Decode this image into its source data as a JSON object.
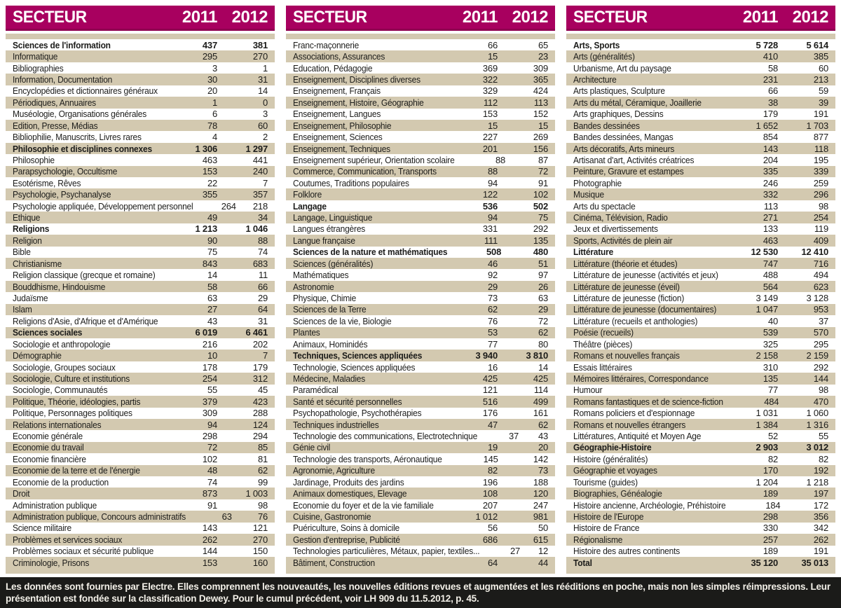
{
  "colors": {
    "header_bg": "#a8005f",
    "header_edge": "#8f0150",
    "row_alt_bg": "#d3c9b0",
    "footer_bg": "#1b1b19",
    "footer_text": "#f3f0e8",
    "body_text": "#1c1c1a"
  },
  "table_header": {
    "sector": "SECTEUR",
    "y2011": "2011",
    "y2012": "2012"
  },
  "tables": [
    {
      "rows": [
        {
          "label": "Sciences de l'information",
          "y2011": "437",
          "y2012": "381",
          "bold": true
        },
        {
          "label": "Informatique",
          "y2011": "295",
          "y2012": "270"
        },
        {
          "label": "Bibliographies",
          "y2011": "3",
          "y2012": "1"
        },
        {
          "label": "Information, Documentation",
          "y2011": "30",
          "y2012": "31"
        },
        {
          "label": "Encyclopédies et dictionnaires généraux",
          "y2011": "20",
          "y2012": "14"
        },
        {
          "label": "Périodiques, Annuaires",
          "y2011": "1",
          "y2012": "0"
        },
        {
          "label": "Muséologie, Organisations générales",
          "y2011": "6",
          "y2012": "3"
        },
        {
          "label": "Edition, Presse, Médias",
          "y2011": "78",
          "y2012": "60"
        },
        {
          "label": "Bibliophilie, Manuscrits, Livres rares",
          "y2011": "4",
          "y2012": "2"
        },
        {
          "label": "Philosophie et disciplines connexes",
          "y2011": "1 306",
          "y2012": "1 297",
          "bold": true
        },
        {
          "label": "Philosophie",
          "y2011": "463",
          "y2012": "441"
        },
        {
          "label": "Parapsychologie, Occultisme",
          "y2011": "153",
          "y2012": "240"
        },
        {
          "label": "Esotérisme, Rêves",
          "y2011": "22",
          "y2012": "7"
        },
        {
          "label": "Psychologie, Psychanalyse",
          "y2011": "355",
          "y2012": "357"
        },
        {
          "label": "Psychologie appliquée, Développement personnel",
          "y2011": "264",
          "y2012": "218"
        },
        {
          "label": "Ethique",
          "y2011": "49",
          "y2012": "34"
        },
        {
          "label": "Religions",
          "y2011": "1 213",
          "y2012": "1 046",
          "bold": true
        },
        {
          "label": "Religion",
          "y2011": "90",
          "y2012": "88"
        },
        {
          "label": "Bible",
          "y2011": "75",
          "y2012": "74"
        },
        {
          "label": "Christianisme",
          "y2011": "843",
          "y2012": "683"
        },
        {
          "label": "Religion classique (grecque et romaine)",
          "y2011": "14",
          "y2012": "11"
        },
        {
          "label": "Bouddhisme, Hindouisme",
          "y2011": "58",
          "y2012": "66"
        },
        {
          "label": "Judaïsme",
          "y2011": "63",
          "y2012": "29"
        },
        {
          "label": "Islam",
          "y2011": "27",
          "y2012": "64"
        },
        {
          "label": "Religions d'Asie, d'Afrique et d'Amérique",
          "y2011": "43",
          "y2012": "31"
        },
        {
          "label": "Sciences sociales",
          "y2011": "6 019",
          "y2012": "6 461",
          "bold": true
        },
        {
          "label": "Sociologie et anthropologie",
          "y2011": "216",
          "y2012": "202"
        },
        {
          "label": "Démographie",
          "y2011": "10",
          "y2012": "7"
        },
        {
          "label": "Sociologie, Groupes sociaux",
          "y2011": "178",
          "y2012": "179"
        },
        {
          "label": "Sociologie, Culture et institutions",
          "y2011": "254",
          "y2012": "312"
        },
        {
          "label": "Sociologie, Communautés",
          "y2011": "55",
          "y2012": "45"
        },
        {
          "label": "Politique, Théorie, idéologies, partis",
          "y2011": "379",
          "y2012": "423"
        },
        {
          "label": "Politique, Personnages politiques",
          "y2011": "309",
          "y2012": "288"
        },
        {
          "label": "Relations internationales",
          "y2011": "94",
          "y2012": "124"
        },
        {
          "label": "Economie générale",
          "y2011": "298",
          "y2012": "294"
        },
        {
          "label": "Economie du travail",
          "y2011": "72",
          "y2012": "85"
        },
        {
          "label": "Economie financière",
          "y2011": "102",
          "y2012": "81"
        },
        {
          "label": "Economie de la terre et de l'énergie",
          "y2011": "48",
          "y2012": "62"
        },
        {
          "label": "Economie de la production",
          "y2011": "74",
          "y2012": "99"
        },
        {
          "label": "Droit",
          "y2011": "873",
          "y2012": "1 003"
        },
        {
          "label": "Administration publique",
          "y2011": "91",
          "y2012": "98"
        },
        {
          "label": "Administration publique, Concours administratifs",
          "y2011": "63",
          "y2012": "76"
        },
        {
          "label": "Science militaire",
          "y2011": "143",
          "y2012": "121"
        },
        {
          "label": "Problèmes et services sociaux",
          "y2011": "262",
          "y2012": "270"
        },
        {
          "label": "Problèmes sociaux et sécurité publique",
          "y2011": "144",
          "y2012": "150"
        },
        {
          "label": "Criminologie, Prisons",
          "y2011": "153",
          "y2012": "160"
        }
      ]
    },
    {
      "rows": [
        {
          "label": "Franc-maçonnerie",
          "y2011": "66",
          "y2012": "65"
        },
        {
          "label": "Associations, Assurances",
          "y2011": "15",
          "y2012": "23"
        },
        {
          "label": "Education, Pédagogie",
          "y2011": "369",
          "y2012": "309"
        },
        {
          "label": "Enseignement, Disciplines diverses",
          "y2011": "322",
          "y2012": "365"
        },
        {
          "label": "Enseignement, Français",
          "y2011": "329",
          "y2012": "424"
        },
        {
          "label": "Enseignement, Histoire, Géographie",
          "y2011": "112",
          "y2012": "113"
        },
        {
          "label": "Enseignement, Langues",
          "y2011": "153",
          "y2012": "152"
        },
        {
          "label": "Enseignement, Philosophie",
          "y2011": "15",
          "y2012": "15"
        },
        {
          "label": "Enseignement, Sciences",
          "y2011": "227",
          "y2012": "269"
        },
        {
          "label": "Enseignement, Techniques",
          "y2011": "201",
          "y2012": "156"
        },
        {
          "label": "Enseignement supérieur, Orientation scolaire",
          "y2011": "88",
          "y2012": "87"
        },
        {
          "label": "Commerce, Communication, Transports",
          "y2011": "88",
          "y2012": "72"
        },
        {
          "label": "Coutumes, Traditions populaires",
          "y2011": "94",
          "y2012": "91"
        },
        {
          "label": "Folklore",
          "y2011": "122",
          "y2012": "102"
        },
        {
          "label": "Langage",
          "y2011": "536",
          "y2012": "502",
          "bold": true
        },
        {
          "label": "Langage, Linguistique",
          "y2011": "94",
          "y2012": "75"
        },
        {
          "label": "Langues étrangères",
          "y2011": "331",
          "y2012": "292"
        },
        {
          "label": "Langue française",
          "y2011": "111",
          "y2012": "135"
        },
        {
          "label": "Sciences de la nature et mathématiques",
          "y2011": "508",
          "y2012": "480",
          "bold": true
        },
        {
          "label": "Sciences (généralités)",
          "y2011": "46",
          "y2012": "51"
        },
        {
          "label": "Mathématiques",
          "y2011": "92",
          "y2012": "97"
        },
        {
          "label": "Astronomie",
          "y2011": "29",
          "y2012": "26"
        },
        {
          "label": "Physique, Chimie",
          "y2011": "73",
          "y2012": "63"
        },
        {
          "label": "Sciences de la Terre",
          "y2011": "62",
          "y2012": "29"
        },
        {
          "label": "Sciences de la vie, Biologie",
          "y2011": "76",
          "y2012": "72"
        },
        {
          "label": "Plantes",
          "y2011": "53",
          "y2012": "62"
        },
        {
          "label": "Animaux, Hominidés",
          "y2011": "77",
          "y2012": "80"
        },
        {
          "label": "Techniques, Sciences appliquées",
          "y2011": "3 940",
          "y2012": "3 810",
          "bold": true
        },
        {
          "label": "Technologie, Sciences appliquées",
          "y2011": "16",
          "y2012": "14"
        },
        {
          "label": "Médecine, Maladies",
          "y2011": "425",
          "y2012": "425"
        },
        {
          "label": "Paramédical",
          "y2011": "121",
          "y2012": "114"
        },
        {
          "label": "Santé et sécurité personnelles",
          "y2011": "516",
          "y2012": "499"
        },
        {
          "label": "Psychopathologie, Psychothérapies",
          "y2011": "176",
          "y2012": "161"
        },
        {
          "label": "Techniques industrielles",
          "y2011": "47",
          "y2012": "62"
        },
        {
          "label": "Technologie des communications, Electrotechnique",
          "y2011": "37",
          "y2012": "43"
        },
        {
          "label": "Génie civil",
          "y2011": "19",
          "y2012": "20"
        },
        {
          "label": "Technologie des transports, Aéronautique",
          "y2011": "145",
          "y2012": "142"
        },
        {
          "label": "Agronomie, Agriculture",
          "y2011": "82",
          "y2012": "73"
        },
        {
          "label": "Jardinage, Produits des jardins",
          "y2011": "196",
          "y2012": "188"
        },
        {
          "label": "Animaux domestiques, Elevage",
          "y2011": "108",
          "y2012": "120"
        },
        {
          "label": "Economie du foyer et de la vie familiale",
          "y2011": "207",
          "y2012": "247"
        },
        {
          "label": "Cuisine, Gastronomie",
          "y2011": "1 012",
          "y2012": "981"
        },
        {
          "label": "Puériculture, Soins à domicile",
          "y2011": "56",
          "y2012": "50"
        },
        {
          "label": "Gestion d'entreprise, Publicité",
          "y2011": "686",
          "y2012": "615"
        },
        {
          "label": "Technologies particulières, Métaux, papier, textiles...",
          "y2011": "27",
          "y2012": "12"
        },
        {
          "label": "Bâtiment, Construction",
          "y2011": "64",
          "y2012": "44"
        }
      ]
    },
    {
      "rows": [
        {
          "label": "Arts, Sports",
          "y2011": "5 728",
          "y2012": "5 614",
          "bold": true
        },
        {
          "label": "Arts (généralités)",
          "y2011": "410",
          "y2012": "385"
        },
        {
          "label": "Urbanisme, Art du paysage",
          "y2011": "58",
          "y2012": "60"
        },
        {
          "label": "Architecture",
          "y2011": "231",
          "y2012": "213"
        },
        {
          "label": "Arts plastiques, Sculpture",
          "y2011": "66",
          "y2012": "59"
        },
        {
          "label": "Arts du métal, Céramique, Joaillerie",
          "y2011": "38",
          "y2012": "39"
        },
        {
          "label": "Arts graphiques, Dessins",
          "y2011": "179",
          "y2012": "191"
        },
        {
          "label": "Bandes dessinées",
          "y2011": "1 652",
          "y2012": "1 703"
        },
        {
          "label": "Bandes dessinées, Mangas",
          "y2011": "854",
          "y2012": "877"
        },
        {
          "label": "Arts décoratifs, Arts mineurs",
          "y2011": "143",
          "y2012": "118"
        },
        {
          "label": "Artisanat d'art, Activités créatrices",
          "y2011": "204",
          "y2012": "195"
        },
        {
          "label": "Peinture, Gravure et estampes",
          "y2011": "335",
          "y2012": "339"
        },
        {
          "label": "Photographie",
          "y2011": "246",
          "y2012": "259"
        },
        {
          "label": "Musique",
          "y2011": "332",
          "y2012": "296"
        },
        {
          "label": "Arts du spectacle",
          "y2011": "113",
          "y2012": "98"
        },
        {
          "label": "Cinéma, Télévision, Radio",
          "y2011": "271",
          "y2012": "254"
        },
        {
          "label": "Jeux et divertissements",
          "y2011": "133",
          "y2012": "119"
        },
        {
          "label": "Sports, Activités de plein air",
          "y2011": "463",
          "y2012": "409"
        },
        {
          "label": "Littérature",
          "y2011": "12 530",
          "y2012": "12 410",
          "bold": true
        },
        {
          "label": "Littérature (théorie et études)",
          "y2011": "747",
          "y2012": "716"
        },
        {
          "label": "Littérature de jeunesse (activités et jeux)",
          "y2011": "488",
          "y2012": "494"
        },
        {
          "label": "Littérature de jeunesse (éveil)",
          "y2011": "564",
          "y2012": "623"
        },
        {
          "label": "Littérature de jeunesse (fiction)",
          "y2011": "3 149",
          "y2012": "3 128"
        },
        {
          "label": "Littérature de jeunesse (documentaires)",
          "y2011": "1 047",
          "y2012": "953"
        },
        {
          "label": "Littérature (recueils et anthologies)",
          "y2011": "40",
          "y2012": "37"
        },
        {
          "label": "Poésie (recueils)",
          "y2011": "539",
          "y2012": "570"
        },
        {
          "label": "Théâtre (pièces)",
          "y2011": "325",
          "y2012": "295"
        },
        {
          "label": "Romans et nouvelles français",
          "y2011": "2 158",
          "y2012": "2 159"
        },
        {
          "label": "Essais littéraires",
          "y2011": "310",
          "y2012": "292"
        },
        {
          "label": "Mémoires littéraires, Correspondance",
          "y2011": "135",
          "y2012": "144"
        },
        {
          "label": "Humour",
          "y2011": "77",
          "y2012": "98"
        },
        {
          "label": "Romans fantastiques et de science-fiction",
          "y2011": "484",
          "y2012": "470"
        },
        {
          "label": "Romans policiers et d'espionnage",
          "y2011": "1 031",
          "y2012": "1 060"
        },
        {
          "label": "Romans et nouvelles étrangers",
          "y2011": "1 384",
          "y2012": "1 316"
        },
        {
          "label": "Littératures, Antiquité et Moyen Age",
          "y2011": "52",
          "y2012": "55"
        },
        {
          "label": "Géographie-Histoire",
          "y2011": "2 903",
          "y2012": "3 012",
          "bold": true
        },
        {
          "label": "Histoire (généralités)",
          "y2011": "82",
          "y2012": "82"
        },
        {
          "label": "Géographie et voyages",
          "y2011": "170",
          "y2012": "192"
        },
        {
          "label": "Tourisme (guides)",
          "y2011": "1 204",
          "y2012": "1 218"
        },
        {
          "label": "Biographies, Généalogie",
          "y2011": "189",
          "y2012": "197"
        },
        {
          "label": "Histoire ancienne, Archéologie, Préhistoire",
          "y2011": "184",
          "y2012": "172"
        },
        {
          "label": "Histoire de l'Europe",
          "y2011": "298",
          "y2012": "356"
        },
        {
          "label": "Histoire de France",
          "y2011": "330",
          "y2012": "342"
        },
        {
          "label": "Régionalisme",
          "y2011": "257",
          "y2012": "262"
        },
        {
          "label": "Histoire des autres continents",
          "y2011": "189",
          "y2012": "191"
        },
        {
          "label": "Total",
          "y2011": "35 120",
          "y2012": "35 013",
          "bold": true
        }
      ]
    }
  ],
  "footer": {
    "text": "Les données sont fournies par Electre. Elles comprennent les nouveautés, les nouvelles éditions revues et augmentées et les rééditions en poche, mais non les simples réimpressions. Leur présentation est fondée sur la classification Dewey. Pour le cumul précédent, voir LH 909 du 11.5.2012, p. 45."
  }
}
